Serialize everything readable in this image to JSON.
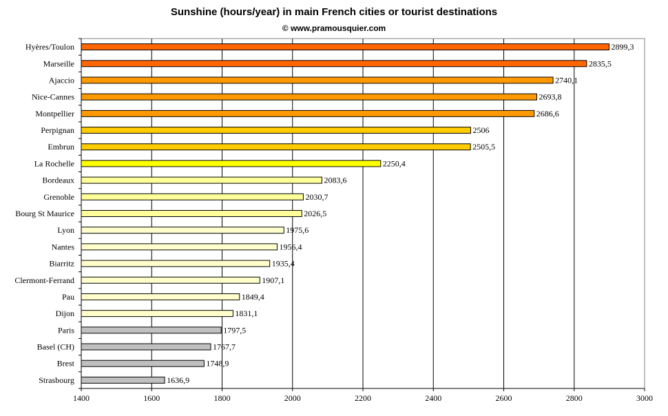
{
  "chart_data": {
    "type": "bar",
    "orientation": "horizontal",
    "title": "Sunshine (hours/year) in main French cities or tourist destinations",
    "subtitle": "© www.pramousquier.com",
    "xlim": [
      1400,
      3000
    ],
    "xticks": [
      "1400",
      "1600",
      "1800",
      "2000",
      "2200",
      "2400",
      "2600",
      "2800",
      "3000"
    ],
    "grid": "vertical",
    "legend": "none",
    "categories": [
      "Hyères/Toulon",
      "Marseille",
      "Ajaccio",
      "Nice-Cannes",
      "Montpellier",
      "Perpignan",
      "Embrun",
      "La Rochelle",
      "Bordeaux",
      "Grenoble",
      "Bourg St Maurice",
      "Lyon",
      "Nantes",
      "Biarritz",
      "Clermont-Ferrand",
      "Pau",
      "Dijon",
      "Paris",
      "Basel (CH)",
      "Brest",
      "Strasbourg"
    ],
    "values": [
      2899.3,
      2835.5,
      2740.1,
      2693.8,
      2686.6,
      2506,
      2505.5,
      2250.4,
      2083.6,
      2030.7,
      2026.5,
      1975.6,
      1956.4,
      1935.4,
      1907.1,
      1849.4,
      1831.1,
      1797.5,
      1767.7,
      1748.9,
      1636.9
    ],
    "value_labels": [
      "2899,3",
      "2835,5",
      "2740,1",
      "2693,8",
      "2686,6",
      "2506",
      "2505,5",
      "2250,4",
      "2083,6",
      "2030,7",
      "2026,5",
      "1975,6",
      "1956,4",
      "1935,4",
      "1907,1",
      "1849,4",
      "1831,1",
      "1797,5",
      "1767,7",
      "1748,9",
      "1636,9"
    ],
    "colors": [
      "#ff6600",
      "#ff6600",
      "#ff9900",
      "#ff9900",
      "#ff9900",
      "#ffcc00",
      "#ffcc00",
      "#ffff00",
      "#ffff99",
      "#ffff99",
      "#ffff99",
      "#ffffcc",
      "#ffffcc",
      "#ffffcc",
      "#ffffcc",
      "#ffffcc",
      "#ffffcc",
      "#c0c0c0",
      "#c0c0c0",
      "#c0c0c0",
      "#c0c0c0"
    ]
  }
}
